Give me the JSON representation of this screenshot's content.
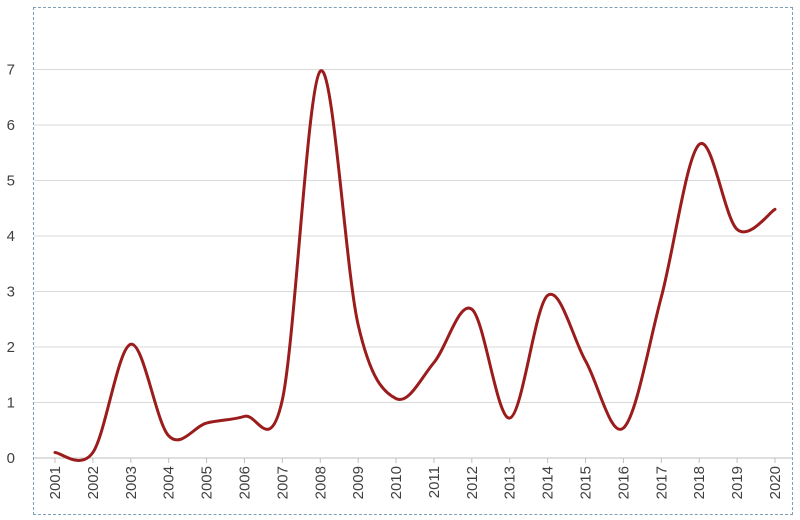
{
  "chart_data": {
    "type": "line",
    "title": "",
    "xlabel": "",
    "ylabel": "",
    "x": [
      "2001",
      "2002",
      "2003",
      "2004",
      "2005",
      "2006",
      "2007",
      "2008",
      "2009",
      "2010",
      "2011",
      "2012",
      "2013",
      "2014",
      "2015",
      "2016",
      "2017",
      "2018",
      "2019",
      "2020"
    ],
    "series": [
      {
        "values": [
          0.1,
          0.1,
          2.05,
          0.4,
          0.63,
          0.75,
          1.05,
          6.97,
          2.4,
          1.07,
          1.72,
          2.68,
          0.72,
          2.93,
          1.75,
          0.54,
          2.9,
          5.65,
          4.12,
          4.48
        ],
        "color": "#9b1c1c"
      }
    ],
    "yticks": [
      "0",
      "1",
      "2",
      "3",
      "4",
      "5",
      "6",
      "7"
    ],
    "ylim": [
      0,
      8
    ],
    "grid": true,
    "legend": "none",
    "smooth": true
  }
}
